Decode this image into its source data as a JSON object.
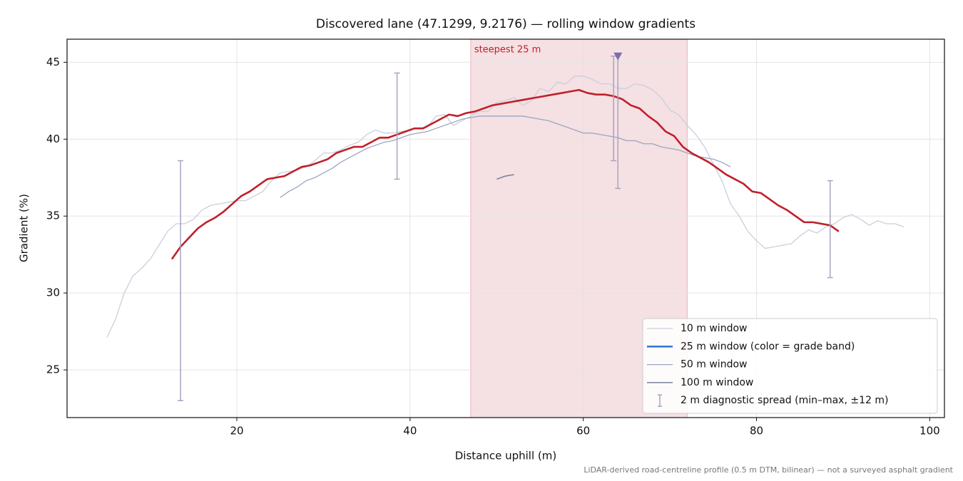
{
  "chart_data": {
    "type": "line",
    "title": "Discovered lane (47.1299, 9.2176) — rolling window gradients",
    "x_label": "Distance uphill (m)",
    "y_label": "Gradient (%)",
    "footnote": "LiDAR-derived road-centreline profile (0.5 m DTM, bilinear) — not a surveyed asphalt gradient",
    "xlim": [
      0.4,
      101.7
    ],
    "ylim": [
      21.9,
      46.5
    ],
    "xticks": [
      20,
      40,
      60,
      80,
      100
    ],
    "yticks": [
      25,
      30,
      35,
      40,
      45
    ],
    "grid": true,
    "legend": "lower right",
    "band": {
      "start": 47,
      "end": 72,
      "color": "#e8b4bc",
      "label": "steepest 25 m"
    },
    "peak": {
      "x": 64,
      "y": 45.4,
      "color": "#7a6fa8"
    },
    "series": [
      {
        "name": "10 m window",
        "color": "#c8d0dc",
        "width": 1.3,
        "x": [
          5,
          6,
          7,
          8,
          9,
          10,
          11,
          12,
          13,
          14,
          15,
          16,
          17,
          18,
          19,
          20,
          21,
          22,
          23,
          24,
          25,
          26,
          27,
          28,
          29,
          30,
          31,
          32,
          33,
          34,
          35,
          36,
          37,
          38,
          39,
          40,
          41,
          42,
          43,
          44,
          45,
          46,
          47,
          48,
          49,
          50,
          51,
          52,
          53,
          54,
          55,
          56,
          57,
          58,
          59,
          60,
          61,
          62,
          63,
          64,
          65,
          66,
          67,
          68,
          69,
          70,
          71,
          72,
          73,
          74,
          75,
          76,
          77,
          78,
          79,
          80,
          81,
          82,
          83,
          84,
          85,
          86,
          87,
          88,
          89,
          90,
          91,
          92,
          93,
          94,
          95,
          96,
          97
        ],
        "values": [
          27.1,
          28.3,
          30.0,
          31.1,
          31.6,
          32.2,
          33.1,
          34.0,
          34.5,
          34.5,
          34.8,
          35.4,
          35.7,
          35.8,
          35.9,
          36.0,
          36.0,
          36.3,
          36.6,
          37.3,
          37.8,
          37.9,
          38.0,
          38.2,
          38.6,
          39.1,
          39.1,
          39.3,
          39.6,
          39.8,
          40.3,
          40.6,
          40.4,
          40.4,
          40.5,
          40.6,
          40.7,
          40.8,
          41.5,
          41.6,
          40.9,
          41.2,
          41.5,
          41.8,
          41.8,
          42.4,
          42.5,
          42.7,
          42.2,
          42.5,
          43.3,
          43.1,
          43.7,
          43.6,
          44.1,
          44.1,
          43.9,
          43.6,
          43.6,
          43.3,
          43.3,
          43.6,
          43.5,
          43.2,
          42.7,
          41.9,
          41.6,
          40.9,
          40.3,
          39.5,
          38.4,
          37.3,
          35.8,
          35.0,
          34.0,
          33.4,
          32.9,
          33.0,
          33.1,
          33.2,
          33.7,
          34.1,
          33.9,
          34.3,
          34.5,
          34.9,
          35.1,
          34.8,
          34.4,
          34.7,
          34.5,
          34.5,
          34.3
        ]
      },
      {
        "name": "50 m window",
        "color": "#9aa6c0",
        "width": 1.3,
        "x": [
          25,
          26,
          27,
          28,
          29,
          30,
          31,
          32,
          33,
          34,
          35,
          36,
          37,
          38,
          39,
          40,
          41,
          42,
          43,
          44,
          45,
          46,
          47,
          48,
          49,
          50,
          51,
          52,
          53,
          54,
          55,
          56,
          57,
          58,
          59,
          60,
          61,
          62,
          63,
          64,
          65,
          66,
          67,
          68,
          69,
          70,
          71,
          72,
          73,
          74,
          75,
          76,
          77
        ],
        "values": [
          36.2,
          36.6,
          36.9,
          37.3,
          37.5,
          37.8,
          38.1,
          38.5,
          38.8,
          39.1,
          39.4,
          39.6,
          39.8,
          39.9,
          40.1,
          40.3,
          40.4,
          40.5,
          40.7,
          40.9,
          41.1,
          41.3,
          41.4,
          41.5,
          41.5,
          41.5,
          41.5,
          41.5,
          41.5,
          41.4,
          41.3,
          41.2,
          41.0,
          40.8,
          40.6,
          40.4,
          40.4,
          40.3,
          40.2,
          40.1,
          39.9,
          39.9,
          39.7,
          39.7,
          39.5,
          39.4,
          39.3,
          39.1,
          38.9,
          38.8,
          38.7,
          38.5,
          38.2
        ]
      },
      {
        "name": "100 m window",
        "color": "#7a7f96",
        "width": 1.5,
        "x": [
          50,
          51,
          52
        ],
        "values": [
          37.4,
          37.6,
          37.7
        ]
      },
      {
        "name": "25 m window (color = grade band)",
        "color": "#c0202a",
        "legend_color": "#3a78d8",
        "width": 2.6,
        "x": [
          12.5,
          13.5,
          14.5,
          15.5,
          16.5,
          17.5,
          18.5,
          19.5,
          20.5,
          21.5,
          22.5,
          23.5,
          24.5,
          25.5,
          26.5,
          27.5,
          28.5,
          29.5,
          30.5,
          31.5,
          32.5,
          33.5,
          34.5,
          35.5,
          36.5,
          37.5,
          38.5,
          39.5,
          40.5,
          41.5,
          42.5,
          43.5,
          44.5,
          45.5,
          46.5,
          47.5,
          48.5,
          49.5,
          50.5,
          51.5,
          52.5,
          53.5,
          54.5,
          55.5,
          56.5,
          57.5,
          58.5,
          59.5,
          60.5,
          61.5,
          62.5,
          63.5,
          64.5,
          65.5,
          66.5,
          67.5,
          68.5,
          69.5,
          70.5,
          71.5,
          72.5,
          73.5,
          74.5,
          75.5,
          76.5,
          77.5,
          78.5,
          79.5,
          80.5,
          81.5,
          82.5,
          83.5,
          84.5,
          85.5,
          86.5,
          87.5,
          88.5,
          89.5
        ],
        "values": [
          32.2,
          33.0,
          33.6,
          34.2,
          34.6,
          34.9,
          35.3,
          35.8,
          36.3,
          36.6,
          37.0,
          37.4,
          37.5,
          37.6,
          37.9,
          38.2,
          38.3,
          38.5,
          38.7,
          39.1,
          39.3,
          39.5,
          39.5,
          39.8,
          40.1,
          40.1,
          40.3,
          40.5,
          40.7,
          40.7,
          41.0,
          41.3,
          41.6,
          41.5,
          41.7,
          41.8,
          42.0,
          42.2,
          42.3,
          42.4,
          42.5,
          42.6,
          42.7,
          42.8,
          42.9,
          43.0,
          43.1,
          43.2,
          43.0,
          42.9,
          42.9,
          42.8,
          42.6,
          42.2,
          42.0,
          41.5,
          41.1,
          40.5,
          40.2,
          39.5,
          39.1,
          38.8,
          38.5,
          38.1,
          37.7,
          37.4,
          37.1,
          36.6,
          36.5,
          36.1,
          35.7,
          35.4,
          35.0,
          34.6,
          34.6,
          34.5,
          34.4,
          34.0
        ]
      }
    ],
    "spread": {
      "name": "2 m diagnostic spread (min–max, ±12 m)",
      "color": "#a8a3c0",
      "x": [
        13.5,
        38.5,
        63.5,
        64,
        88.5
      ],
      "low": [
        23.0,
        37.4,
        38.6,
        36.8,
        31.0
      ],
      "high": [
        38.6,
        44.3,
        45.4,
        45.5,
        37.3
      ]
    }
  }
}
